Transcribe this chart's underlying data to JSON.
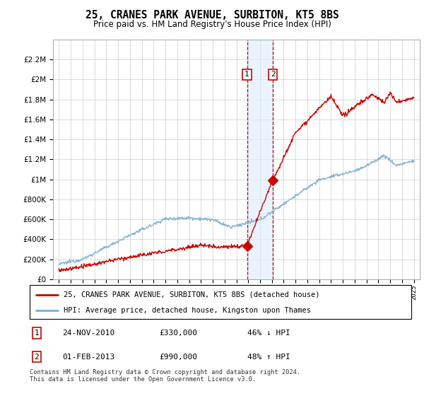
{
  "title": "25, CRANES PARK AVENUE, SURBITON, KT5 8BS",
  "subtitle": "Price paid vs. HM Land Registry's House Price Index (HPI)",
  "legend_line1": "25, CRANES PARK AVENUE, SURBITON, KT5 8BS (detached house)",
  "legend_line2": "HPI: Average price, detached house, Kingston upon Thames",
  "annotation1_label": "1",
  "annotation1_date": "24-NOV-2010",
  "annotation1_price": "£330,000",
  "annotation1_hpi": "46% ↓ HPI",
  "annotation2_label": "2",
  "annotation2_date": "01-FEB-2013",
  "annotation2_price": "£990,000",
  "annotation2_hpi": "48% ↑ HPI",
  "footer": "Contains HM Land Registry data © Crown copyright and database right 2024.\nThis data is licensed under the Open Government Licence v3.0.",
  "red_color": "#cc0000",
  "blue_color": "#7aadd4",
  "shade_color": "#ddeeff",
  "grid_color": "#cccccc",
  "annotation_box_color": "#cc0000",
  "ylim_min": 0,
  "ylim_max": 2400000,
  "x_start_year": 1995,
  "x_end_year": 2025,
  "purchase1_year": 2010.9,
  "purchase1_value": 330000,
  "purchase2_year": 2013.08,
  "purchase2_value": 990000
}
